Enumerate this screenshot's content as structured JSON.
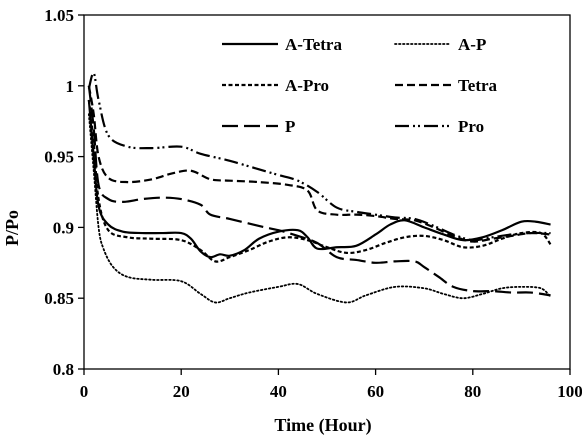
{
  "chart_data": {
    "type": "line",
    "title": "",
    "xlabel": "Time (Hour)",
    "ylabel": "P/Po",
    "xlim": [
      0,
      100
    ],
    "ylim": [
      0.8,
      1.05
    ],
    "xticks": [
      0,
      20,
      40,
      60,
      80,
      100
    ],
    "yticks": [
      0.8,
      0.85,
      0.9,
      0.95,
      1.0,
      1.05
    ],
    "xtick_labels": [
      "0",
      "20",
      "40",
      "60",
      "80",
      "100"
    ],
    "ytick_labels": [
      "0.8",
      "0.85",
      "0.9",
      "0.95",
      "1",
      "1.05"
    ],
    "grid": false,
    "legend_position": "top-right",
    "series": [
      {
        "name": "A-Tetra",
        "dash": "solid",
        "points": [
          [
            1,
            0.99
          ],
          [
            2,
            0.95
          ],
          [
            3,
            0.915
          ],
          [
            5,
            0.902
          ],
          [
            8,
            0.897
          ],
          [
            12,
            0.896
          ],
          [
            16,
            0.896
          ],
          [
            20,
            0.896
          ],
          [
            22,
            0.892
          ],
          [
            24,
            0.883
          ],
          [
            26,
            0.879
          ],
          [
            28,
            0.881
          ],
          [
            30,
            0.88
          ],
          [
            33,
            0.884
          ],
          [
            36,
            0.892
          ],
          [
            40,
            0.897
          ],
          [
            44,
            0.898
          ],
          [
            46,
            0.893
          ],
          [
            48,
            0.885
          ],
          [
            52,
            0.886
          ],
          [
            56,
            0.887
          ],
          [
            60,
            0.895
          ],
          [
            63,
            0.902
          ],
          [
            66,
            0.905
          ],
          [
            70,
            0.9
          ],
          [
            74,
            0.895
          ],
          [
            78,
            0.891
          ],
          [
            82,
            0.893
          ],
          [
            86,
            0.898
          ],
          [
            90,
            0.904
          ],
          [
            93,
            0.904
          ],
          [
            96,
            0.902
          ]
        ]
      },
      {
        "name": "A-P",
        "dash": "dotted",
        "points": [
          [
            1,
            0.98
          ],
          [
            2,
            0.94
          ],
          [
            3,
            0.9
          ],
          [
            4,
            0.885
          ],
          [
            6,
            0.872
          ],
          [
            9,
            0.865
          ],
          [
            14,
            0.863
          ],
          [
            20,
            0.862
          ],
          [
            24,
            0.853
          ],
          [
            27,
            0.847
          ],
          [
            30,
            0.85
          ],
          [
            34,
            0.854
          ],
          [
            40,
            0.858
          ],
          [
            44,
            0.86
          ],
          [
            48,
            0.853
          ],
          [
            54,
            0.847
          ],
          [
            58,
            0.852
          ],
          [
            64,
            0.858
          ],
          [
            70,
            0.857
          ],
          [
            74,
            0.853
          ],
          [
            78,
            0.85
          ],
          [
            82,
            0.853
          ],
          [
            86,
            0.857
          ],
          [
            90,
            0.858
          ],
          [
            94,
            0.857
          ],
          [
            96,
            0.851
          ]
        ]
      },
      {
        "name": "A-Pro",
        "dash": "dash-short",
        "points": [
          [
            1,
            0.99
          ],
          [
            2,
            0.96
          ],
          [
            3,
            0.92
          ],
          [
            5,
            0.898
          ],
          [
            9,
            0.893
          ],
          [
            14,
            0.892
          ],
          [
            20,
            0.891
          ],
          [
            24,
            0.884
          ],
          [
            27,
            0.876
          ],
          [
            30,
            0.879
          ],
          [
            34,
            0.884
          ],
          [
            38,
            0.89
          ],
          [
            42,
            0.893
          ],
          [
            46,
            0.891
          ],
          [
            50,
            0.886
          ],
          [
            54,
            0.882
          ],
          [
            58,
            0.884
          ],
          [
            62,
            0.889
          ],
          [
            66,
            0.893
          ],
          [
            70,
            0.894
          ],
          [
            74,
            0.891
          ],
          [
            78,
            0.886
          ],
          [
            82,
            0.887
          ],
          [
            86,
            0.892
          ],
          [
            90,
            0.896
          ],
          [
            94,
            0.896
          ],
          [
            96,
            0.888
          ]
        ]
      },
      {
        "name": "Tetra",
        "dash": "dash-medium",
        "points": [
          [
            1,
            1.0
          ],
          [
            2,
            0.98
          ],
          [
            3,
            0.95
          ],
          [
            5,
            0.935
          ],
          [
            9,
            0.932
          ],
          [
            14,
            0.934
          ],
          [
            18,
            0.938
          ],
          [
            22,
            0.94
          ],
          [
            26,
            0.934
          ],
          [
            30,
            0.933
          ],
          [
            36,
            0.932
          ],
          [
            42,
            0.93
          ],
          [
            46,
            0.926
          ],
          [
            48,
            0.912
          ],
          [
            52,
            0.909
          ],
          [
            56,
            0.909
          ],
          [
            60,
            0.908
          ],
          [
            64,
            0.906
          ],
          [
            68,
            0.905
          ],
          [
            72,
            0.9
          ],
          [
            76,
            0.894
          ],
          [
            80,
            0.89
          ],
          [
            84,
            0.892
          ],
          [
            88,
            0.894
          ],
          [
            92,
            0.896
          ],
          [
            96,
            0.895
          ]
        ]
      },
      {
        "name": "P",
        "dash": "dash-long",
        "points": [
          [
            1,
            1.0
          ],
          [
            2,
            0.97
          ],
          [
            3,
            0.93
          ],
          [
            5,
            0.92
          ],
          [
            8,
            0.918
          ],
          [
            12,
            0.92
          ],
          [
            16,
            0.921
          ],
          [
            20,
            0.92
          ],
          [
            24,
            0.916
          ],
          [
            26,
            0.909
          ],
          [
            30,
            0.906
          ],
          [
            36,
            0.901
          ],
          [
            40,
            0.898
          ],
          [
            44,
            0.894
          ],
          [
            48,
            0.889
          ],
          [
            52,
            0.879
          ],
          [
            56,
            0.877
          ],
          [
            60,
            0.875
          ],
          [
            64,
            0.876
          ],
          [
            68,
            0.876
          ],
          [
            70,
            0.872
          ],
          [
            73,
            0.865
          ],
          [
            76,
            0.858
          ],
          [
            80,
            0.855
          ],
          [
            84,
            0.855
          ],
          [
            88,
            0.854
          ],
          [
            92,
            0.854
          ],
          [
            96,
            0.852
          ]
        ]
      },
      {
        "name": "Pro",
        "dash": "dash-dot-dot",
        "points": [
          [
            1,
            0.998
          ],
          [
            2,
            1.009
          ],
          [
            3,
            0.99
          ],
          [
            5,
            0.965
          ],
          [
            9,
            0.957
          ],
          [
            14,
            0.956
          ],
          [
            20,
            0.957
          ],
          [
            24,
            0.952
          ],
          [
            30,
            0.947
          ],
          [
            36,
            0.941
          ],
          [
            40,
            0.937
          ],
          [
            44,
            0.933
          ],
          [
            48,
            0.925
          ],
          [
            52,
            0.914
          ],
          [
            56,
            0.911
          ],
          [
            60,
            0.909
          ],
          [
            64,
            0.907
          ],
          [
            68,
            0.906
          ],
          [
            72,
            0.901
          ],
          [
            76,
            0.895
          ],
          [
            80,
            0.891
          ],
          [
            84,
            0.893
          ],
          [
            88,
            0.895
          ],
          [
            92,
            0.896
          ],
          [
            96,
            0.896
          ]
        ]
      }
    ]
  }
}
